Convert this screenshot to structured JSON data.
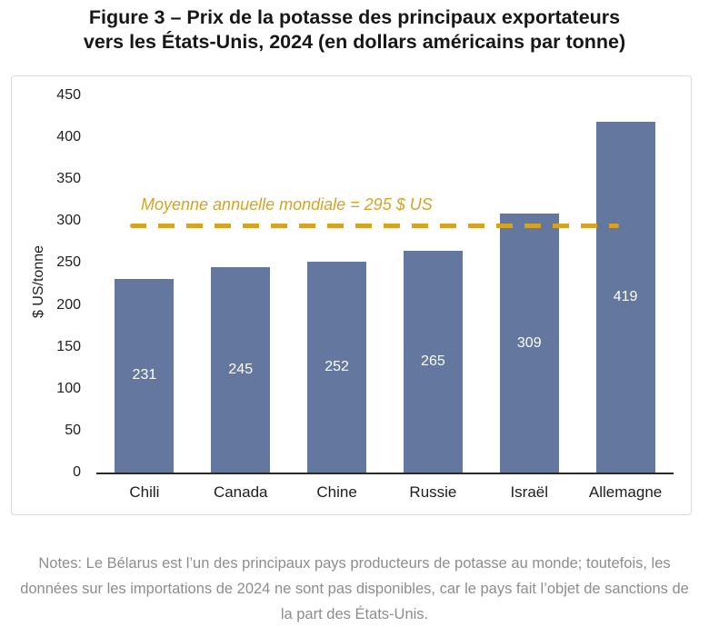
{
  "title": {
    "line1": "Figure 3 – Prix de la potasse des principaux exportateurs",
    "line2": "vers les États-Unis, 2024 (en dollars américains par tonne)"
  },
  "chart_data": {
    "type": "bar",
    "title": "Figure 3 – Prix de la potasse des principaux exportateurs vers les États-Unis, 2024 (en dollars américains par tonne)",
    "categories": [
      "Chili",
      "Canada",
      "Chine",
      "Russie",
      "Israël",
      "Allemagne"
    ],
    "values": [
      231,
      245,
      252,
      265,
      309,
      419
    ],
    "xlabel": "",
    "ylabel": "$ US/tonne",
    "ylim": [
      0,
      450
    ],
    "yticks": [
      0,
      50,
      100,
      150,
      200,
      250,
      300,
      350,
      400,
      450
    ],
    "grid": false,
    "legend": "none",
    "bar_color": "#64779E",
    "value_label_color": "#FFFFFF",
    "reference_line": {
      "value": 295,
      "label": "Moyenne annuelle mondiale = 295 $ US",
      "color": "#D5A324",
      "style": "dashed"
    }
  },
  "notes": "Notes: Le Bélarus est l’un des principaux pays producteurs de potasse au monde; toutefois, les données sur les importations de 2024 ne sont pas disponibles, car le pays fait l’objet de sanctions de la part des États-Unis."
}
